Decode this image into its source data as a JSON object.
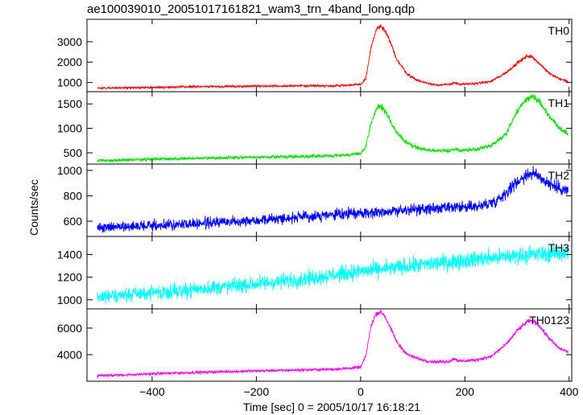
{
  "title": "ae100039010_20051017161821_wam3_trn_4band_long.qdp",
  "xlabel": "Time [sec] 0 = 2005/10/17 16:18:21",
  "ylabel": "Counts/sec",
  "chart_data": {
    "type": "line",
    "title": "ae100039010_20051017161821_wam3_trn_4band_long.qdp",
    "xlabel": "Time [sec] 0 = 2005/10/17 16:18:21",
    "ylabel": "Counts/sec",
    "xlim": [
      -525,
      405
    ],
    "x_ticks": [
      -400,
      -200,
      0,
      200,
      400
    ],
    "x_tick_labels": [
      "−400",
      "−200",
      "0",
      "200",
      "400"
    ],
    "grid": false,
    "panels": [
      {
        "name": "TH0",
        "color": "#ff0000",
        "ylim": [
          550,
          4100
        ],
        "y_ticks": [
          1000,
          2000,
          3000
        ],
        "y_tick_labels": [
          "1000",
          "2000",
          "3000"
        ],
        "noise": 35,
        "x": [
          -505,
          -450,
          -400,
          -300,
          -200,
          -100,
          -50,
          0,
          10,
          20,
          30,
          38,
          45,
          55,
          70,
          90,
          110,
          130,
          150,
          170,
          180,
          190,
          220,
          250,
          280,
          300,
          320,
          330,
          340,
          360,
          380,
          398
        ],
        "y": [
          720,
          740,
          760,
          800,
          820,
          840,
          840,
          900,
          1200,
          2700,
          3600,
          3750,
          3600,
          3100,
          2100,
          1400,
          1100,
          950,
          880,
          900,
          1000,
          900,
          950,
          1050,
          1500,
          1950,
          2300,
          2250,
          2000,
          1500,
          1200,
          1050
        ]
      },
      {
        "name": "TH1",
        "color": "#00e000",
        "ylim": [
          270,
          1750
        ],
        "y_ticks": [
          500,
          1000,
          1500
        ],
        "y_tick_labels": [
          "500",
          "1000",
          "1500"
        ],
        "noise": 22,
        "x": [
          -505,
          -450,
          -400,
          -300,
          -200,
          -100,
          -50,
          0,
          10,
          20,
          30,
          38,
          45,
          55,
          70,
          90,
          110,
          130,
          150,
          170,
          180,
          190,
          220,
          250,
          280,
          300,
          320,
          330,
          340,
          360,
          380,
          398
        ],
        "y": [
          340,
          355,
          370,
          390,
          410,
          430,
          440,
          480,
          620,
          1100,
          1400,
          1450,
          1380,
          1200,
          900,
          690,
          600,
          560,
          540,
          545,
          580,
          550,
          570,
          640,
          900,
          1350,
          1620,
          1660,
          1580,
          1280,
          1030,
          880
        ]
      },
      {
        "name": "TH2",
        "color": "#0000ff",
        "ylim": [
          480,
          1050
        ],
        "y_ticks": [
          600,
          800,
          1000
        ],
        "y_tick_labels": [
          "600",
          "800",
          "1000"
        ],
        "noise": 28,
        "x": [
          -505,
          -400,
          -300,
          -200,
          -100,
          0,
          100,
          150,
          200,
          230,
          260,
          280,
          300,
          320,
          330,
          340,
          360,
          380,
          398
        ],
        "y": [
          550,
          565,
          585,
          610,
          635,
          665,
          690,
          700,
          710,
          720,
          760,
          830,
          910,
          970,
          975,
          960,
          900,
          860,
          840
        ]
      },
      {
        "name": "TH3",
        "color": "#00ffff",
        "ylim": [
          920,
          1560
        ],
        "y_ticks": [
          1000,
          1200,
          1400
        ],
        "y_tick_labels": [
          "1000",
          "1200",
          "1400"
        ],
        "noise": 45,
        "x": [
          -505,
          -400,
          -300,
          -200,
          -100,
          0,
          100,
          200,
          300,
          398
        ],
        "y": [
          1030,
          1060,
          1100,
          1140,
          1190,
          1250,
          1300,
          1350,
          1390,
          1420
        ]
      },
      {
        "name": "TH0123",
        "color": "#ff00ff",
        "ylim": [
          2000,
          7450
        ],
        "y_ticks": [
          4000,
          6000
        ],
        "y_tick_labels": [
          "4000",
          "6000"
        ],
        "noise": 70,
        "x": [
          -505,
          -450,
          -400,
          -300,
          -200,
          -100,
          -50,
          0,
          10,
          20,
          30,
          38,
          45,
          55,
          70,
          90,
          110,
          130,
          150,
          170,
          180,
          190,
          220,
          250,
          280,
          300,
          320,
          330,
          340,
          360,
          380,
          398
        ],
        "y": [
          2420,
          2480,
          2560,
          2680,
          2780,
          2860,
          2900,
          3050,
          3900,
          6200,
          7100,
          7200,
          7000,
          6200,
          4900,
          4000,
          3700,
          3500,
          3450,
          3500,
          3700,
          3500,
          3600,
          3850,
          4800,
          5800,
          6500,
          6550,
          6300,
          5300,
          4500,
          4200
        ]
      }
    ]
  }
}
